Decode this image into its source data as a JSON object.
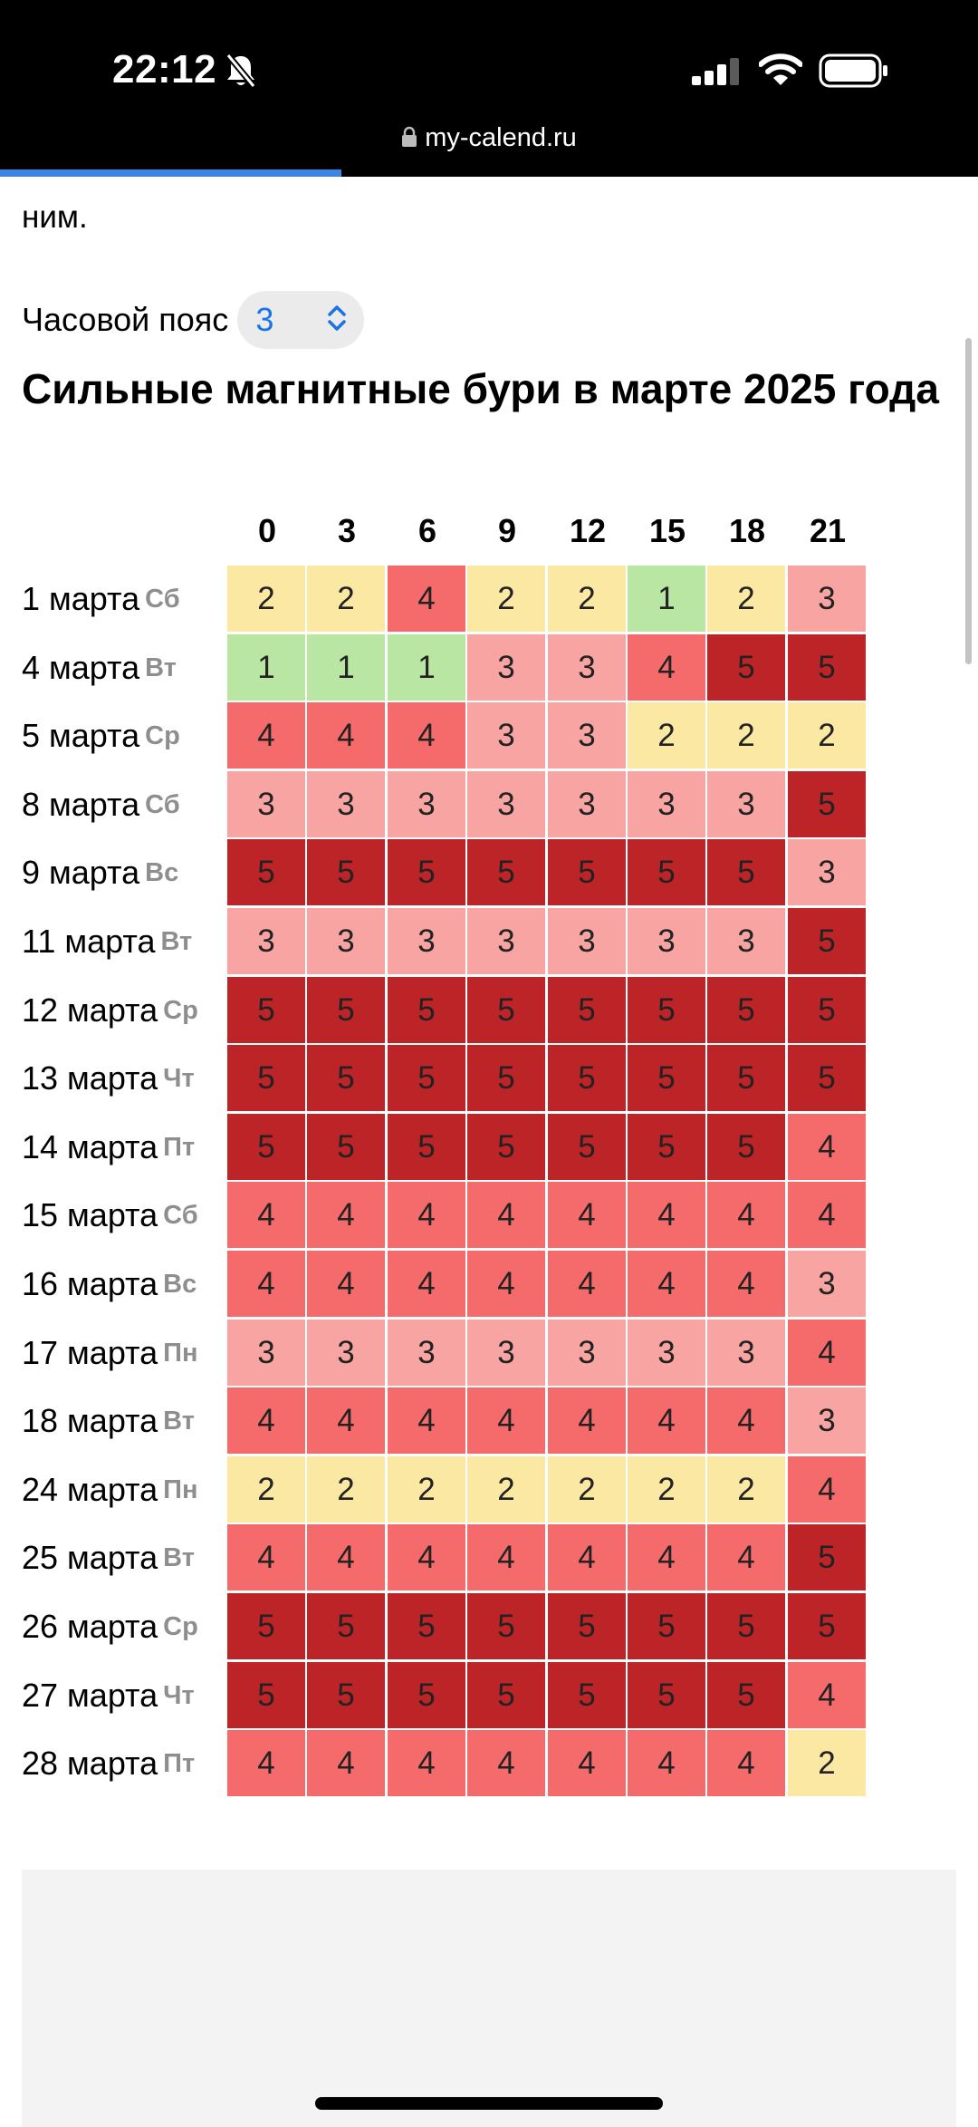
{
  "status_bar": {
    "time": "22:12",
    "url": "my-calend.ru"
  },
  "page": {
    "cut_text": "ним.",
    "timezone": {
      "label": "Часовой пояс",
      "value": "3"
    },
    "heading": "Сильные магнитные бури в марте 2025 года"
  },
  "table": {
    "hours": [
      "0",
      "3",
      "6",
      "9",
      "12",
      "15",
      "18",
      "21"
    ],
    "rows": [
      {
        "date": "1 марта",
        "day": "Сб",
        "values": [
          2,
          2,
          4,
          2,
          2,
          1,
          2,
          3
        ]
      },
      {
        "date": "4 марта",
        "day": "Вт",
        "values": [
          1,
          1,
          1,
          3,
          3,
          4,
          5,
          5
        ]
      },
      {
        "date": "5 марта",
        "day": "Ср",
        "values": [
          4,
          4,
          4,
          3,
          3,
          2,
          2,
          2
        ]
      },
      {
        "date": "8 марта",
        "day": "Сб",
        "values": [
          3,
          3,
          3,
          3,
          3,
          3,
          3,
          5
        ]
      },
      {
        "date": "9 марта",
        "day": "Вс",
        "values": [
          5,
          5,
          5,
          5,
          5,
          5,
          5,
          3
        ]
      },
      {
        "date": "11 марта",
        "day": "Вт",
        "values": [
          3,
          3,
          3,
          3,
          3,
          3,
          3,
          5
        ]
      },
      {
        "date": "12 марта",
        "day": "Ср",
        "values": [
          5,
          5,
          5,
          5,
          5,
          5,
          5,
          5
        ]
      },
      {
        "date": "13 марта",
        "day": "Чт",
        "values": [
          5,
          5,
          5,
          5,
          5,
          5,
          5,
          5
        ]
      },
      {
        "date": "14 марта",
        "day": "Пт",
        "values": [
          5,
          5,
          5,
          5,
          5,
          5,
          5,
          4
        ]
      },
      {
        "date": "15 марта",
        "day": "Сб",
        "values": [
          4,
          4,
          4,
          4,
          4,
          4,
          4,
          4
        ]
      },
      {
        "date": "16 марта",
        "day": "Вс",
        "values": [
          4,
          4,
          4,
          4,
          4,
          4,
          4,
          3
        ]
      },
      {
        "date": "17 марта",
        "day": "Пн",
        "values": [
          3,
          3,
          3,
          3,
          3,
          3,
          3,
          4
        ]
      },
      {
        "date": "18 марта",
        "day": "Вт",
        "values": [
          4,
          4,
          4,
          4,
          4,
          4,
          4,
          3
        ]
      },
      {
        "date": "24 марта",
        "day": "Пн",
        "values": [
          2,
          2,
          2,
          2,
          2,
          2,
          2,
          4
        ]
      },
      {
        "date": "25 марта",
        "day": "Вт",
        "values": [
          4,
          4,
          4,
          4,
          4,
          4,
          4,
          5
        ]
      },
      {
        "date": "26 марта",
        "day": "Ср",
        "values": [
          5,
          5,
          5,
          5,
          5,
          5,
          5,
          5
        ]
      },
      {
        "date": "27 марта",
        "day": "Чт",
        "values": [
          5,
          5,
          5,
          5,
          5,
          5,
          5,
          4
        ]
      },
      {
        "date": "28 марта",
        "day": "Пт",
        "values": [
          4,
          4,
          4,
          4,
          4,
          4,
          4,
          2
        ]
      }
    ]
  },
  "colors": {
    "level_1": "#b9e6a2",
    "level_2": "#fbe8a3",
    "level_3": "#f8a4a2",
    "level_4": "#f56b6b",
    "level_5": "#bc2428",
    "link_blue": "#1a73e8"
  },
  "icons": [
    "bell-slash-icon",
    "cellular-signal-icon",
    "wifi-icon",
    "battery-icon",
    "lock-icon",
    "chevron-updown-icon"
  ]
}
